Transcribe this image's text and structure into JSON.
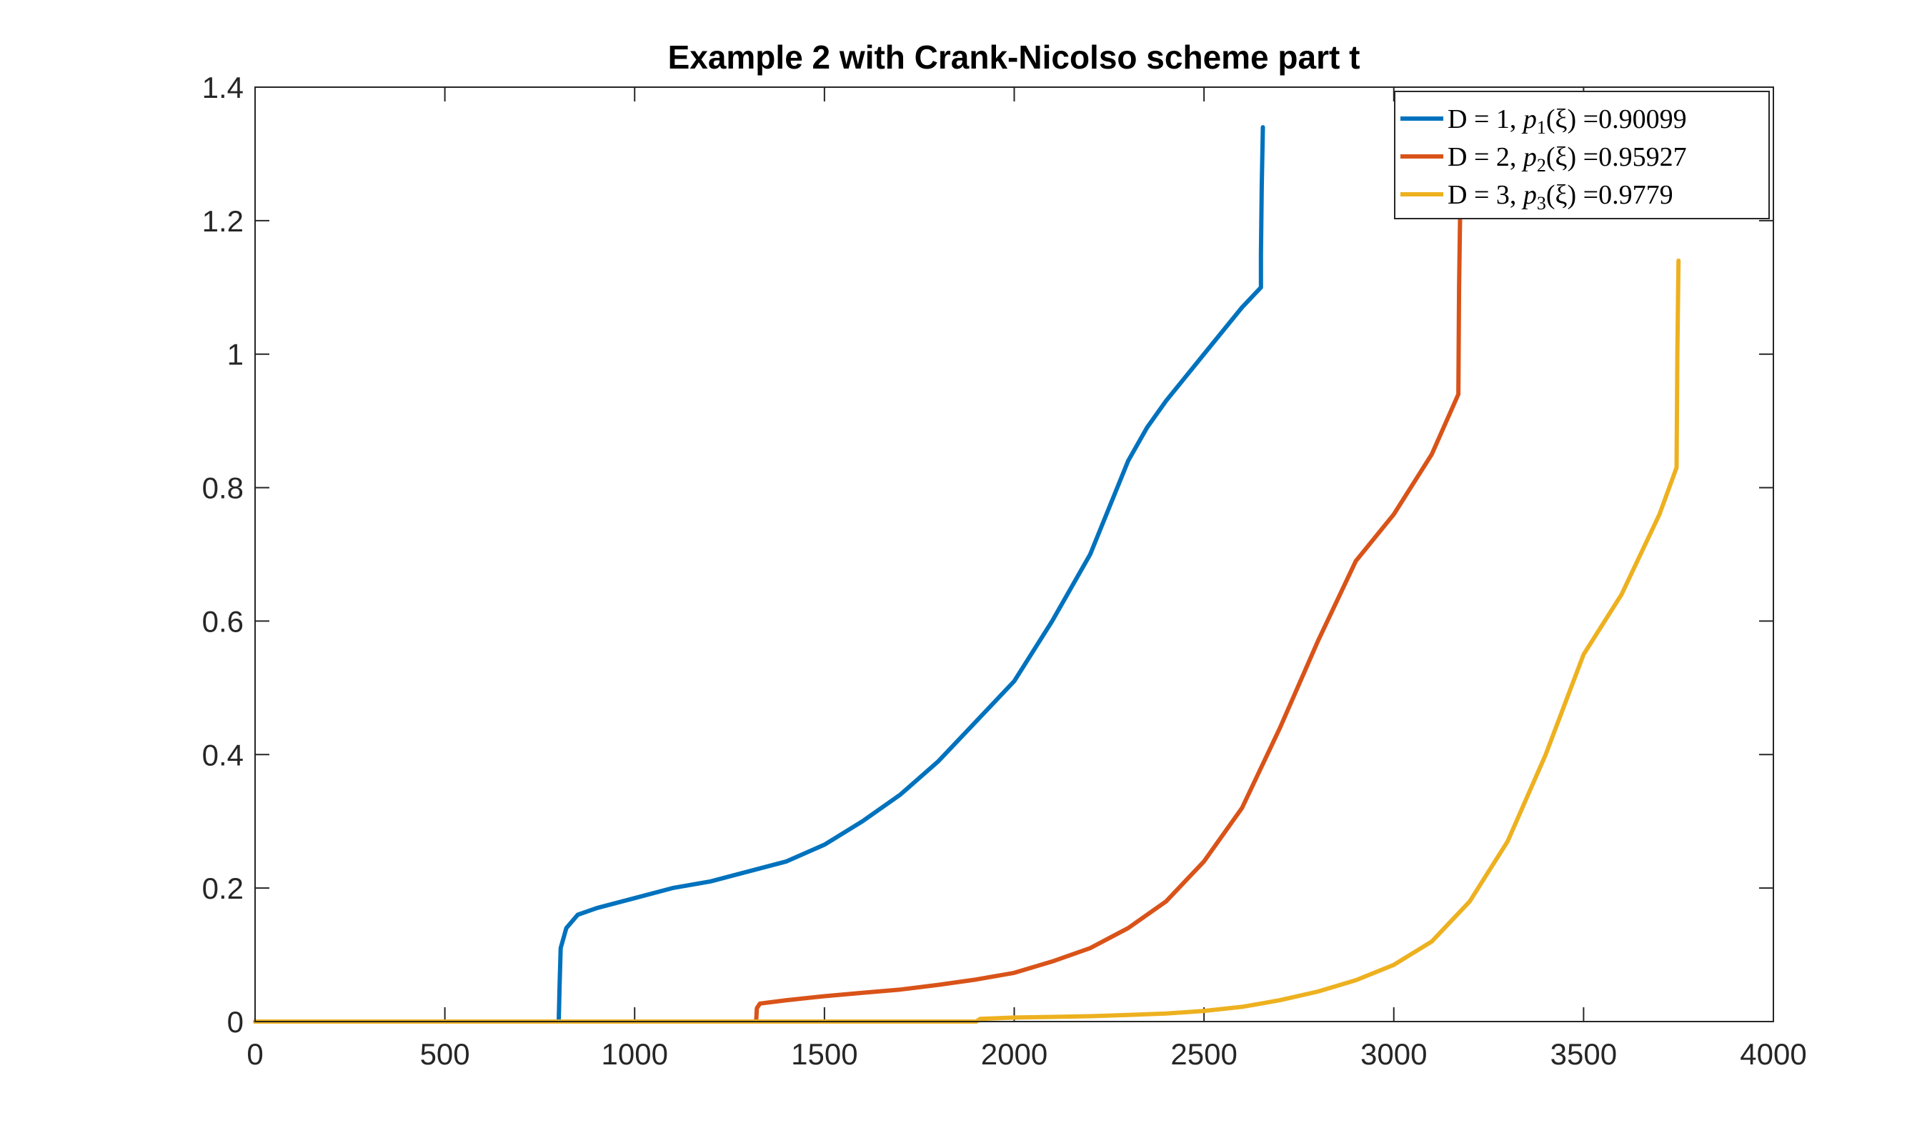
{
  "chart_data": {
    "type": "line",
    "title": "Example 2 with Crank-Nicolso scheme part t",
    "xlabel": "",
    "ylabel": "",
    "xlim": [
      0,
      4000
    ],
    "ylim": [
      0,
      1.4
    ],
    "xticks": [
      0,
      500,
      1000,
      1500,
      2000,
      2500,
      3000,
      3500,
      4000
    ],
    "yticks": [
      0,
      0.2,
      0.4,
      0.6,
      0.8,
      1,
      1.2,
      1.4
    ],
    "xtick_labels": [
      "0",
      "500",
      "1000",
      "1500",
      "2000",
      "2500",
      "3000",
      "3500",
      "4000"
    ],
    "ytick_labels": [
      "0",
      "0.2",
      "0.4",
      "0.6",
      "0.8",
      "1",
      "1.2",
      "1.4"
    ],
    "grid": false,
    "legend_position": "top-right",
    "series": [
      {
        "name": "D = 1, p1(ξ) =0.90099",
        "color": "#0072BD",
        "x": [
          0,
          800,
          802,
          805,
          820,
          850,
          900,
          1000,
          1100,
          1200,
          1300,
          1400,
          1500,
          1600,
          1700,
          1800,
          1900,
          2000,
          2100,
          2200,
          2300,
          2350,
          2400,
          2500,
          2600,
          2650,
          2650,
          2652,
          2655
        ],
        "y": [
          0,
          0,
          0.05,
          0.11,
          0.14,
          0.16,
          0.17,
          0.185,
          0.2,
          0.21,
          0.225,
          0.24,
          0.265,
          0.3,
          0.34,
          0.39,
          0.45,
          0.51,
          0.6,
          0.7,
          0.84,
          0.89,
          0.93,
          1.0,
          1.07,
          1.1,
          1.15,
          1.25,
          1.34
        ]
      },
      {
        "name": "D = 2, p2(ξ) =0.95927",
        "color": "#D95319",
        "x": [
          0,
          1320,
          1322,
          1330,
          1400,
          1500,
          1600,
          1700,
          1800,
          1900,
          2000,
          2100,
          2200,
          2300,
          2400,
          2500,
          2600,
          2700,
          2800,
          2900,
          3000,
          3100,
          3170,
          3172,
          3175
        ],
        "y": [
          0,
          0,
          0.02,
          0.027,
          0.032,
          0.038,
          0.043,
          0.048,
          0.055,
          0.063,
          0.073,
          0.09,
          0.11,
          0.14,
          0.18,
          0.24,
          0.32,
          0.44,
          0.57,
          0.69,
          0.76,
          0.85,
          0.94,
          1.1,
          1.22
        ]
      },
      {
        "name": "D = 3, p3(ξ) =0.9779",
        "color": "#EDB120",
        "x": [
          0,
          1900,
          1910,
          2000,
          2100,
          2200,
          2300,
          2400,
          2500,
          2600,
          2700,
          2800,
          2900,
          3000,
          3100,
          3200,
          3300,
          3400,
          3500,
          3600,
          3700,
          3745,
          3747,
          3750
        ],
        "y": [
          0,
          0,
          0.004,
          0.006,
          0.007,
          0.008,
          0.01,
          0.012,
          0.016,
          0.022,
          0.032,
          0.045,
          0.062,
          0.085,
          0.12,
          0.18,
          0.27,
          0.4,
          0.55,
          0.64,
          0.76,
          0.83,
          1.0,
          1.14
        ]
      }
    ]
  },
  "legend": {
    "entries": [
      {
        "prefix": "D = 1, ",
        "p": "p",
        "sub": "1",
        "arg": "(ξ) =",
        "value": "0.90099"
      },
      {
        "prefix": "D = 2, ",
        "p": "p",
        "sub": "2",
        "arg": "(ξ) =",
        "value": "0.95927"
      },
      {
        "prefix": "D = 3, ",
        "p": "p",
        "sub": "3",
        "arg": "(ξ) =",
        "value": "0.9779"
      }
    ]
  }
}
